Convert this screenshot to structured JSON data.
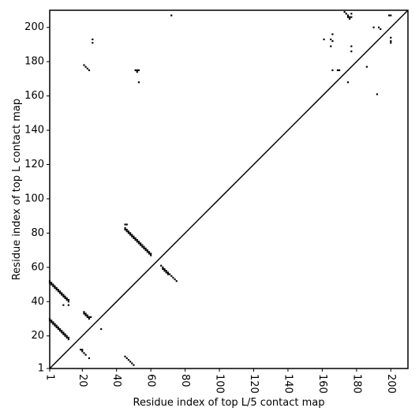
{
  "chart_data": {
    "type": "scatter",
    "xlabel": "Residue index of top L/5 contact map",
    "ylabel": "Residue index of top L contact map",
    "xlim": [
      1,
      210
    ],
    "ylim": [
      1,
      210
    ],
    "xticks": [
      1,
      20,
      40,
      60,
      80,
      100,
      120,
      140,
      160,
      180,
      200
    ],
    "yticks": [
      1,
      20,
      40,
      60,
      80,
      100,
      120,
      140,
      160,
      180,
      200
    ],
    "diagonal": true,
    "color": "#000000",
    "x": [
      1,
      1,
      2,
      2,
      3,
      3,
      4,
      4,
      5,
      5,
      6,
      6,
      7,
      7,
      8,
      8,
      9,
      9,
      10,
      10,
      11,
      11,
      12,
      12,
      9,
      12,
      1,
      1,
      2,
      2,
      3,
      3,
      4,
      4,
      5,
      5,
      6,
      6,
      7,
      7,
      8,
      8,
      9,
      9,
      10,
      10,
      11,
      11,
      12,
      12,
      19,
      20,
      20,
      21,
      22,
      24,
      21,
      21,
      22,
      22,
      23,
      23,
      24,
      24,
      25,
      31,
      45,
      46,
      47,
      48,
      49,
      50,
      45,
      46,
      45,
      45,
      46,
      46,
      47,
      47,
      48,
      48,
      49,
      49,
      50,
      50,
      51,
      51,
      52,
      52,
      53,
      53,
      54,
      54,
      55,
      55,
      56,
      56,
      57,
      57,
      58,
      58,
      59,
      59,
      60,
      60,
      66,
      67,
      68,
      69,
      70,
      71,
      72,
      73,
      74,
      75,
      67,
      68,
      69,
      70,
      72,
      21,
      22,
      23,
      24,
      26,
      26,
      51,
      52,
      53,
      52,
      53,
      161,
      165,
      166,
      166,
      165,
      166,
      169,
      170,
      175,
      177,
      177,
      173,
      174,
      175,
      176,
      177,
      175,
      176,
      177,
      186,
      190,
      192,
      193,
      194,
      199,
      200,
      200,
      200,
      200
    ],
    "values": [
      52,
      51,
      51,
      50,
      50,
      49,
      49,
      48,
      48,
      47,
      47,
      46,
      46,
      45,
      45,
      44,
      44,
      43,
      43,
      42,
      42,
      41,
      41,
      40,
      38,
      38,
      30,
      29,
      29,
      28,
      28,
      27,
      27,
      26,
      26,
      25,
      25,
      24,
      24,
      23,
      23,
      22,
      22,
      21,
      21,
      20,
      20,
      19,
      19,
      18,
      12,
      12,
      11,
      10,
      9,
      7,
      34,
      33,
      33,
      32,
      32,
      31,
      31,
      30,
      31,
      24,
      8,
      7,
      6,
      5,
      4,
      3,
      85,
      85,
      83,
      82,
      82,
      81,
      81,
      80,
      80,
      79,
      79,
      78,
      78,
      77,
      77,
      76,
      76,
      75,
      75,
      74,
      74,
      73,
      73,
      72,
      72,
      71,
      71,
      70,
      70,
      69,
      69,
      68,
      68,
      67,
      61,
      60,
      59,
      58,
      57,
      56,
      55,
      54,
      53,
      52,
      59,
      58,
      57,
      56,
      207,
      178,
      177,
      176,
      175,
      193,
      191,
      175,
      175,
      175,
      174,
      168,
      193,
      193,
      192,
      196,
      189,
      175,
      175,
      175,
      168,
      189,
      186,
      209,
      208,
      207,
      206,
      206,
      206,
      205,
      208,
      177,
      200,
      161,
      200,
      199,
      207,
      207,
      194,
      191,
      192
    ]
  }
}
